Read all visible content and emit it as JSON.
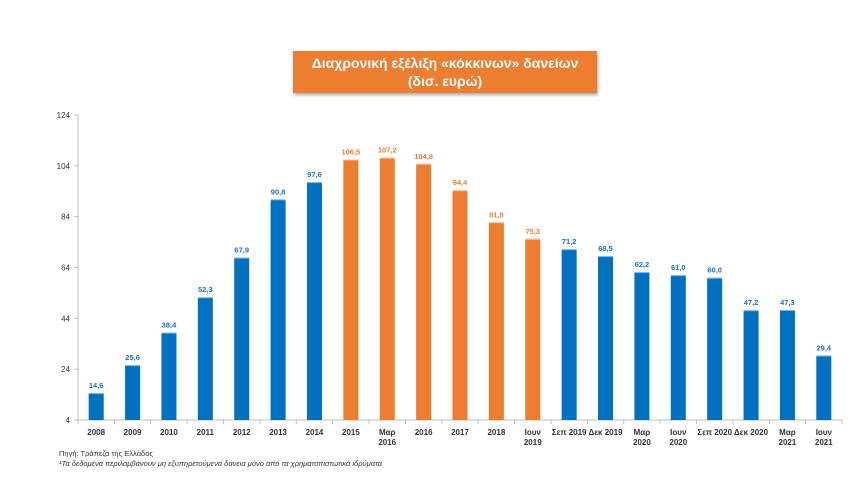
{
  "chart_data": {
    "type": "bar",
    "title": "Διαχρονική εξέλιξη «κόκκινων» δανείων",
    "subtitle": "(δισ. ευρώ)",
    "categories": [
      [
        "2008"
      ],
      [
        "2009"
      ],
      [
        "2010"
      ],
      [
        "2011"
      ],
      [
        "2012"
      ],
      [
        "2013"
      ],
      [
        "2014"
      ],
      [
        "2015"
      ],
      [
        "Μαρ",
        "2016"
      ],
      [
        "2016"
      ],
      [
        "2017"
      ],
      [
        "2018"
      ],
      [
        "Ιουν",
        "2019"
      ],
      [
        "Σεπ 2019"
      ],
      [
        "Δεκ 2019"
      ],
      [
        "Μαρ",
        "2020"
      ],
      [
        "Ιουν",
        "2020"
      ],
      [
        "Σεπ 2020"
      ],
      [
        "Δεκ 2020"
      ],
      [
        "Μαρ",
        "2021"
      ],
      [
        "Ιουν",
        "2021"
      ]
    ],
    "values": [
      14.6,
      25.6,
      38.4,
      52.3,
      67.9,
      90.8,
      97.6,
      106.5,
      107.2,
      104.8,
      94.4,
      81.8,
      75.3,
      71.2,
      68.5,
      62.2,
      61.0,
      60.0,
      47.2,
      47.3,
      29.4
    ],
    "value_labels": [
      "14,6",
      "25,6",
      "38,4",
      "52,3",
      "67,9",
      "90,8",
      "97,6",
      "106,5",
      "107,2",
      "104,8",
      "94,4",
      "81,8",
      "75,3",
      "71,2",
      "68,5",
      "62,2",
      "61,0",
      "60,0",
      "47,2",
      "47,3",
      "29,4"
    ],
    "bar_colors": [
      "blue",
      "blue",
      "blue",
      "blue",
      "blue",
      "blue",
      "blue",
      "orange",
      "orange",
      "orange",
      "orange",
      "orange",
      "orange",
      "blue",
      "blue",
      "blue",
      "blue",
      "blue",
      "blue",
      "blue",
      "blue"
    ],
    "colors": {
      "blue": "#0070c0",
      "orange": "#ed7d31",
      "blue_label": "#1f6fbf",
      "orange_label": "#ed7d31"
    },
    "yticks": [
      "4",
      "24",
      "44",
      "64",
      "84",
      "104",
      "124"
    ],
    "ylim": [
      4,
      124
    ],
    "grid": false,
    "legend": "none"
  },
  "footnotes": {
    "source": "Πηγή: Τράπεζα της Ελλάδος",
    "note": "¹Τα δεδομένα περιλαμβάνουν μη εξυπηρετούμενα δάνεια μόνο από τα χρηματοπιστωτικά ιδρύματα"
  }
}
